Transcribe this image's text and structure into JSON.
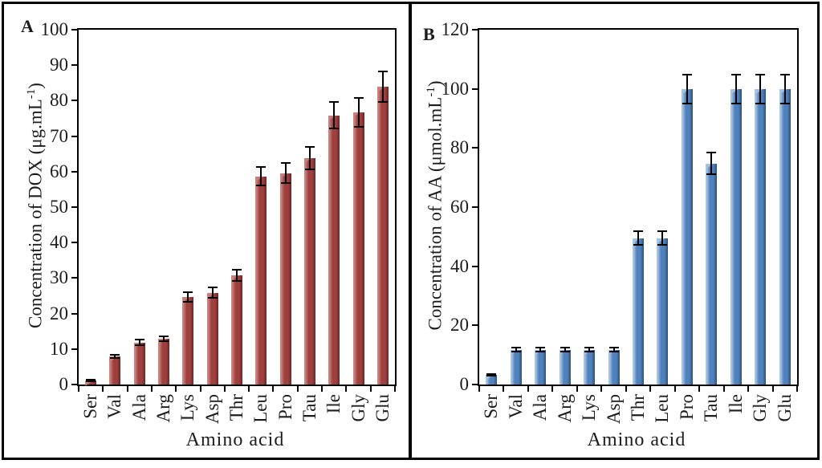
{
  "chart_data": [
    {
      "panel_label": "A",
      "type": "bar",
      "title": "",
      "xlabel": "Amino acid",
      "ylabel": "Concentration of DOX (μg.mL⁻¹)",
      "ylabel_parts": {
        "pre": "Concentration of DOX (μg.mL",
        "sup": "-1",
        "post": ")"
      },
      "ylim": [
        0,
        100
      ],
      "yticks": [
        0,
        10,
        20,
        30,
        40,
        50,
        60,
        70,
        80,
        90,
        100
      ],
      "grid": false,
      "legend": null,
      "categories": [
        "Ser",
        "Val",
        "Ala",
        "Arg",
        "Lys",
        "Asp",
        "Thr",
        "Leu",
        "Pro",
        "Tau",
        "Ile",
        "Gly",
        "Glu"
      ],
      "values": [
        1.1,
        7.9,
        11.8,
        12.9,
        24.7,
        25.8,
        30.8,
        58.7,
        59.6,
        63.9,
        75.9,
        76.8,
        83.9
      ],
      "errors": [
        0.4,
        0.6,
        1.0,
        1.0,
        1.6,
        1.7,
        1.8,
        2.8,
        3.0,
        3.4,
        4.0,
        4.3,
        4.5
      ],
      "colors": {
        "light": "#c8827f",
        "mid": "#9e403e",
        "dark": "#6f2624"
      },
      "error_bar_color": "#000000",
      "axis_color": "#000000"
    },
    {
      "panel_label": "B",
      "type": "bar",
      "title": "",
      "xlabel": "Amino acid",
      "ylabel": "Concentration of AA (μmol.mL⁻¹)",
      "ylabel_parts": {
        "pre": "Concentration of AA (μmol.mL",
        "sup": "-1",
        "post": ")"
      },
      "ylim": [
        0,
        120
      ],
      "yticks": [
        0,
        20,
        40,
        60,
        80,
        100,
        120
      ],
      "grid": false,
      "legend": null,
      "categories": [
        "Ser",
        "Val",
        "Ala",
        "Arg",
        "Lys",
        "Asp",
        "Thr",
        "Leu",
        "Pro",
        "Tau",
        "Ile",
        "Gly",
        "Glu"
      ],
      "values": [
        3.3,
        11.8,
        11.8,
        11.8,
        11.8,
        11.8,
        49.5,
        49.5,
        99.9,
        74.8,
        99.9,
        99.9,
        99.9
      ],
      "errors": [
        0.6,
        0.9,
        0.9,
        0.9,
        0.9,
        0.9,
        2.6,
        2.6,
        5.2,
        3.9,
        5.2,
        5.2,
        5.2
      ],
      "colors": {
        "light": "#a9c4e0",
        "mid": "#4f81bd",
        "dark": "#2e5175"
      },
      "error_bar_color": "#000000",
      "axis_color": "#000000"
    }
  ]
}
